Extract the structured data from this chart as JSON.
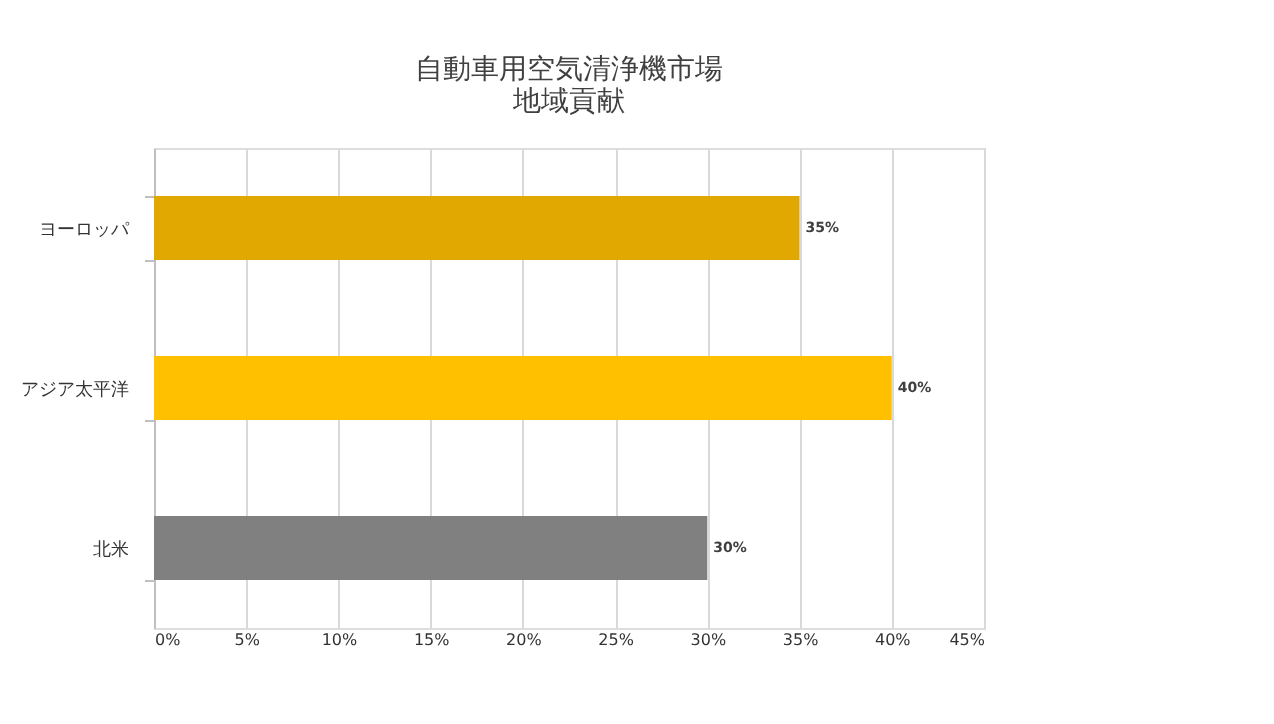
{
  "chart_data": {
    "type": "bar",
    "orientation": "horizontal",
    "title": [
      "自動車用空気清浄機市場",
      "地域貢献"
    ],
    "categories": [
      "ヨーロッパ",
      "アジア太平洋",
      "北米"
    ],
    "values": [
      35,
      40,
      30
    ],
    "colors": [
      "#e0a800",
      "#ffc000",
      "#808080"
    ],
    "value_labels": [
      "35%",
      "40%",
      "30%"
    ],
    "xlim": [
      0,
      45
    ],
    "xticks": [
      {
        "value": 0,
        "label": "0%"
      },
      {
        "value": 5,
        "label": "5%"
      },
      {
        "value": 10,
        "label": "10%"
      },
      {
        "value": 15,
        "label": "15%"
      },
      {
        "value": 20,
        "label": "20%"
      },
      {
        "value": 25,
        "label": "25%"
      },
      {
        "value": 30,
        "label": "30%"
      },
      {
        "value": 35,
        "label": "35%"
      },
      {
        "value": 40,
        "label": "40%"
      },
      {
        "value": 45,
        "label": "45%"
      }
    ],
    "grid": "x",
    "legend": false
  }
}
